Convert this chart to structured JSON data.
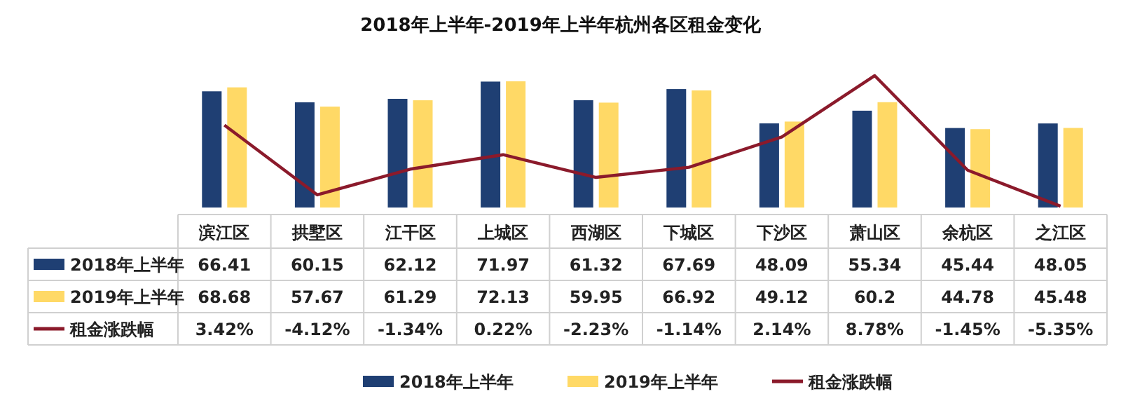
{
  "chart_data": {
    "type": "bar",
    "title": "2018年上半年-2019年上半年杭州各区租金变化",
    "categories": [
      "滨江区",
      "拱墅区",
      "江干区",
      "上城区",
      "西湖区",
      "下城区",
      "下沙区",
      "萧山区",
      "余杭区",
      "之江区"
    ],
    "series": [
      {
        "name": "2018年上半年",
        "color": "#1f3f73",
        "values": [
          66.41,
          60.15,
          62.12,
          71.97,
          61.32,
          67.69,
          48.09,
          55.34,
          45.44,
          48.05
        ],
        "value_labels": [
          "66.41",
          "60.15",
          "62.12",
          "71.97",
          "61.32",
          "67.69",
          "48.09",
          "55.34",
          "45.44",
          "48.05"
        ]
      },
      {
        "name": "2019年上半年",
        "color": "#ffd966",
        "values": [
          68.68,
          57.67,
          61.29,
          72.13,
          59.95,
          66.92,
          49.12,
          60.2,
          44.78,
          45.48
        ],
        "value_labels": [
          "68.68",
          "57.67",
          "61.29",
          "72.13",
          "59.95",
          "66.92",
          "49.12",
          "60.2",
          "44.78",
          "45.48"
        ]
      },
      {
        "name": "租金涨跌幅",
        "type": "line",
        "axis": "y2",
        "color": "#8b1a2b",
        "values": [
          3.42,
          -4.12,
          -1.34,
          0.22,
          -2.23,
          -1.14,
          2.14,
          8.78,
          -1.45,
          -5.35
        ],
        "value_labels": [
          "3.42%",
          "-4.12%",
          "-1.34%",
          "0.22%",
          "-2.23%",
          "-1.14%",
          "2.14%",
          "8.78%",
          "-1.45%",
          "-5.35%"
        ]
      }
    ],
    "tick_labels": "x",
    "grid": false,
    "legend": "bottom"
  }
}
